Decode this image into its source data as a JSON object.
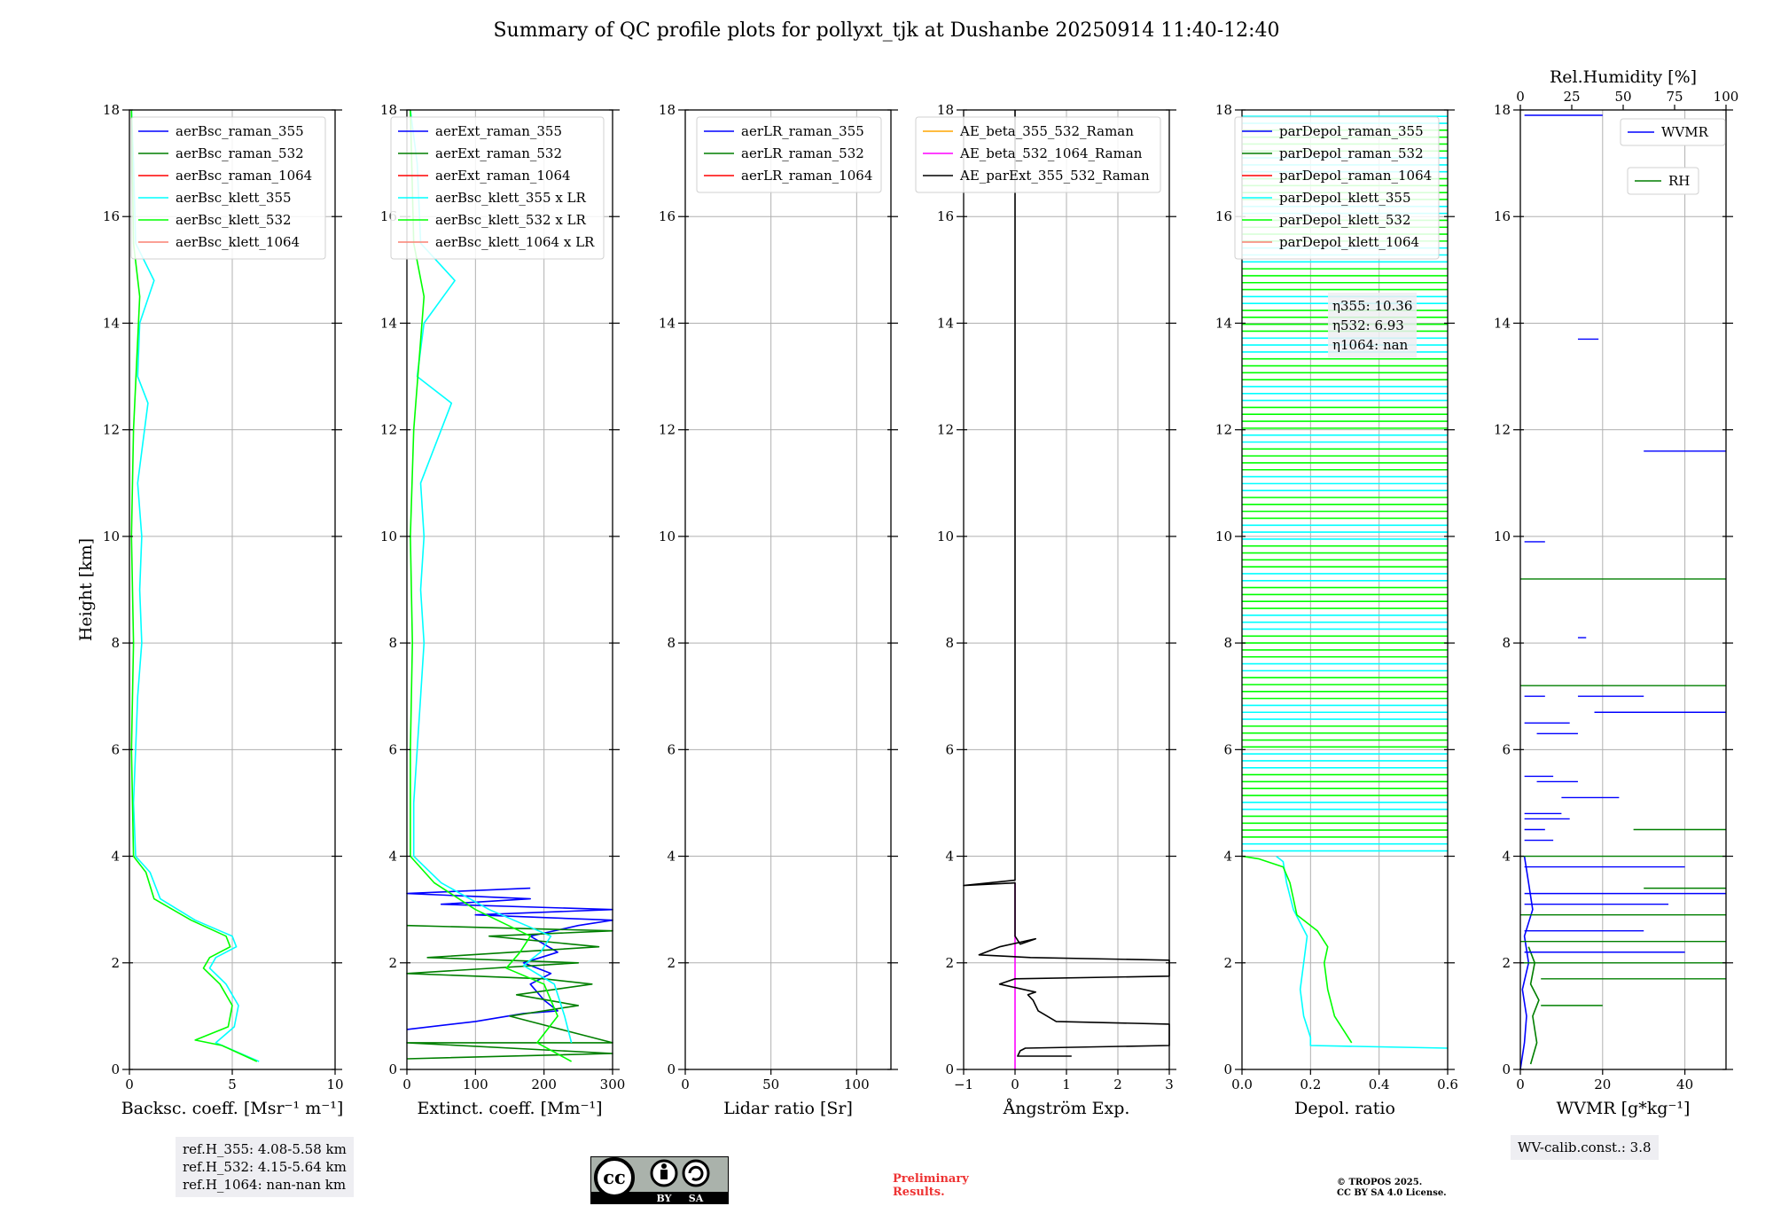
{
  "title": "Summary of QC profile plots for pollyxt_tjk at Dushanbe 20250914 11:40-12:40",
  "shared_ylabel": "Height [km]",
  "y_ticks": [
    "0",
    "2",
    "4",
    "6",
    "8",
    "10",
    "12",
    "14",
    "16",
    "18"
  ],
  "colors": {
    "blue": "#0000ff",
    "green": "#007f00",
    "red": "#ff0000",
    "cyan": "#00ffff",
    "lime": "#00ff00",
    "salmon": "#fa8072",
    "orange": "#ffa500",
    "magenta": "#ff00ff",
    "black": "#000000"
  },
  "ref_heights": [
    "ref.H_355: 4.08-5.58 km",
    "ref.H_532: 4.15-5.64 km",
    "ref.H_1064: nan-nan km"
  ],
  "wv_calib": "WV-calib.const.: 3.8",
  "preliminary": [
    "Preliminary",
    "Results."
  ],
  "copyright": [
    "© TROPOS 2025.",
    "CC BY SA 4.0 License."
  ],
  "license_badge": {
    "cc": "cc",
    "by": "BY",
    "sa": "SA"
  },
  "depol_annotation": [
    "η355: 10.36",
    "η532: 6.93",
    "η1064: nan"
  ],
  "chart_data": [
    {
      "type": "line",
      "xlabel": "Backsc. coeff. [Msr⁻¹ m⁻¹]",
      "ylabel": "Height [km]",
      "xlim": [
        0,
        10
      ],
      "ylim": [
        0,
        18
      ],
      "x_ticks": [
        0,
        5,
        10
      ],
      "grid": true,
      "legend_position": "top-right",
      "series": [
        {
          "name": "aerBsc_raman_355",
          "color": "blue",
          "points": []
        },
        {
          "name": "aerBsc_raman_532",
          "color": "green",
          "points": []
        },
        {
          "name": "aerBsc_raman_1064",
          "color": "red",
          "points": []
        },
        {
          "name": "aerBsc_klett_355",
          "color": "cyan",
          "points": [
            [
              6.3,
              0.15
            ],
            [
              4.2,
              0.5
            ],
            [
              5.1,
              0.8
            ],
            [
              5.3,
              1.2
            ],
            [
              4.7,
              1.6
            ],
            [
              3.9,
              1.9
            ],
            [
              4.2,
              2.1
            ],
            [
              5.2,
              2.3
            ],
            [
              5.0,
              2.5
            ],
            [
              3.2,
              2.8
            ],
            [
              1.5,
              3.2
            ],
            [
              1.0,
              3.7
            ],
            [
              0.3,
              4.0
            ],
            [
              0.2,
              5.0
            ],
            [
              0.3,
              6.0
            ],
            [
              0.4,
              7.0
            ],
            [
              0.6,
              8.0
            ],
            [
              0.5,
              9.0
            ],
            [
              0.6,
              10.0
            ],
            [
              0.4,
              11.0
            ],
            [
              0.9,
              12.5
            ],
            [
              0.4,
              13.0
            ],
            [
              0.5,
              14.0
            ],
            [
              1.2,
              14.8
            ],
            [
              0.3,
              15.5
            ],
            [
              0.2,
              17.0
            ],
            [
              0.1,
              18.0
            ]
          ]
        },
        {
          "name": "aerBsc_klett_532",
          "color": "lime",
          "points": [
            [
              6.2,
              0.15
            ],
            [
              4.5,
              0.45
            ],
            [
              3.2,
              0.55
            ],
            [
              4.8,
              0.8
            ],
            [
              5.0,
              1.2
            ],
            [
              4.4,
              1.6
            ],
            [
              3.6,
              1.9
            ],
            [
              3.9,
              2.1
            ],
            [
              4.9,
              2.3
            ],
            [
              4.7,
              2.5
            ],
            [
              3.0,
              2.8
            ],
            [
              1.2,
              3.2
            ],
            [
              0.8,
              3.7
            ],
            [
              0.2,
              4.0
            ],
            [
              0.1,
              6.0
            ],
            [
              0.2,
              8.0
            ],
            [
              0.1,
              10.0
            ],
            [
              0.2,
              12.0
            ],
            [
              0.5,
              14.5
            ],
            [
              0.2,
              15.5
            ],
            [
              0.1,
              18.0
            ]
          ]
        },
        {
          "name": "aerBsc_klett_1064",
          "color": "salmon",
          "points": []
        }
      ]
    },
    {
      "type": "line",
      "xlabel": "Extinct. coeff. [Mm⁻¹]",
      "ylabel": "",
      "xlim": [
        0,
        300
      ],
      "ylim": [
        0,
        18
      ],
      "x_ticks": [
        0,
        100,
        200,
        300
      ],
      "grid": true,
      "legend_position": "top-right",
      "series": [
        {
          "name": "aerExt_raman_355",
          "color": "blue",
          "points": [
            [
              0,
              0.75
            ],
            [
              100,
              0.9
            ],
            [
              170,
              1.05
            ],
            [
              220,
              1.1
            ],
            [
              200,
              1.3
            ],
            [
              180,
              1.6
            ],
            [
              210,
              1.8
            ],
            [
              170,
              2.0
            ],
            [
              220,
              2.2
            ],
            [
              180,
              2.5
            ],
            [
              250,
              2.7
            ],
            [
              300,
              2.8
            ],
            [
              100,
              2.9
            ],
            [
              300,
              3.0
            ],
            [
              50,
              3.1
            ],
            [
              180,
              3.2
            ],
            [
              0,
              3.3
            ],
            [
              180,
              3.4
            ]
          ]
        },
        {
          "name": "aerExt_raman_532",
          "color": "green",
          "points": [
            [
              0,
              0.2
            ],
            [
              300,
              0.3
            ],
            [
              0,
              0.5
            ],
            [
              300,
              0.5
            ],
            [
              150,
              1.0
            ],
            [
              250,
              1.2
            ],
            [
              160,
              1.4
            ],
            [
              270,
              1.6
            ],
            [
              200,
              1.7
            ],
            [
              0,
              1.8
            ],
            [
              250,
              2.0
            ],
            [
              30,
              2.1
            ],
            [
              280,
              2.3
            ],
            [
              120,
              2.5
            ],
            [
              300,
              2.6
            ],
            [
              0,
              2.7
            ]
          ]
        },
        {
          "name": "aerExt_raman_1064",
          "color": "red",
          "points": []
        },
        {
          "name": "aerBsc_klett_355 x LR",
          "color": "cyan",
          "points": [
            [
              240,
              0.5
            ],
            [
              230,
              1.0
            ],
            [
              215,
              1.6
            ],
            [
              170,
              1.95
            ],
            [
              195,
              2.2
            ],
            [
              210,
              2.5
            ],
            [
              120,
              3.0
            ],
            [
              50,
              3.5
            ],
            [
              10,
              4.0
            ],
            [
              10,
              5.0
            ],
            [
              15,
              6.0
            ],
            [
              20,
              7.0
            ],
            [
              25,
              8.0
            ],
            [
              20,
              9.0
            ],
            [
              25,
              10.0
            ],
            [
              20,
              11.0
            ],
            [
              65,
              12.5
            ],
            [
              15,
              13.0
            ],
            [
              25,
              14.0
            ],
            [
              70,
              14.8
            ],
            [
              20,
              15.5
            ],
            [
              15,
              17.0
            ],
            [
              5,
              18.0
            ]
          ]
        },
        {
          "name": "aerBsc_klett_532 x LR",
          "color": "lime",
          "points": [
            [
              240,
              0.15
            ],
            [
              190,
              0.5
            ],
            [
              220,
              1.0
            ],
            [
              200,
              1.6
            ],
            [
              145,
              1.9
            ],
            [
              165,
              2.2
            ],
            [
              180,
              2.5
            ],
            [
              100,
              3.0
            ],
            [
              40,
              3.5
            ],
            [
              5,
              4.0
            ],
            [
              5,
              6.0
            ],
            [
              8,
              8.0
            ],
            [
              5,
              10.0
            ],
            [
              10,
              12.0
            ],
            [
              25,
              14.5
            ],
            [
              10,
              15.5
            ],
            [
              5,
              18.0
            ]
          ]
        },
        {
          "name": "aerBsc_klett_1064 x LR",
          "color": "salmon",
          "points": []
        }
      ]
    },
    {
      "type": "line",
      "xlabel": "Lidar ratio [Sr]",
      "ylabel": "",
      "xlim": [
        0,
        120
      ],
      "ylim": [
        0,
        18
      ],
      "x_ticks": [
        0,
        50,
        100
      ],
      "grid": true,
      "legend_position": "top-right",
      "series": [
        {
          "name": "aerLR_raman_355",
          "color": "blue",
          "points": []
        },
        {
          "name": "aerLR_raman_532",
          "color": "green",
          "points": []
        },
        {
          "name": "aerLR_raman_1064",
          "color": "red",
          "points": []
        }
      ]
    },
    {
      "type": "line",
      "xlabel": "Ångström Exp.",
      "ylabel": "",
      "xlim": [
        -1,
        3
      ],
      "ylim": [
        0,
        18
      ],
      "x_ticks": [
        "−1",
        "0",
        "1",
        "2",
        "3"
      ],
      "x_tick_values": [
        -1,
        0,
        1,
        2,
        3
      ],
      "grid": true,
      "legend_position": "top-right",
      "series": [
        {
          "name": "AE_beta_355_532_Raman",
          "color": "orange",
          "points": []
        },
        {
          "name": "AE_beta_532_1064_Raman",
          "color": "magenta",
          "points": [
            [
              0,
              0
            ],
            [
              0,
              3.5
            ]
          ]
        },
        {
          "name": "AE_parExt_355_532_Raman",
          "color": "black",
          "points": [
            [
              1.1,
              0.25
            ],
            [
              0.05,
              0.25
            ],
            [
              0.1,
              0.35
            ],
            [
              0.2,
              0.4
            ],
            [
              3.0,
              0.45
            ],
            [
              3.0,
              0.85
            ],
            [
              0.8,
              0.9
            ],
            [
              0.45,
              1.1
            ],
            [
              0.35,
              1.3
            ],
            [
              0.25,
              1.4
            ],
            [
              0.4,
              1.45
            ],
            [
              -0.3,
              1.6
            ],
            [
              0.0,
              1.7
            ],
            [
              3.0,
              1.75
            ],
            [
              3.0,
              2.05
            ],
            [
              0.3,
              2.1
            ],
            [
              -0.7,
              2.15
            ],
            [
              -0.3,
              2.3
            ],
            [
              0.4,
              2.45
            ],
            [
              0.1,
              2.35
            ],
            [
              0,
              2.5
            ],
            [
              0,
              3.5
            ],
            [
              -1.0,
              3.45
            ],
            [
              0,
              3.55
            ],
            [
              0,
              18
            ]
          ]
        }
      ]
    },
    {
      "type": "line",
      "xlabel": "Depol. ratio",
      "ylabel": "",
      "xlim": [
        0,
        0.6
      ],
      "ylim": [
        0,
        18
      ],
      "x_ticks": [
        "0.0",
        "0.2",
        "0.4",
        "0.6"
      ],
      "x_tick_values": [
        0,
        0.2,
        0.4,
        0.6
      ],
      "grid": true,
      "legend_position": "top-right",
      "series": [
        {
          "name": "parDepol_raman_355",
          "color": "blue",
          "points": []
        },
        {
          "name": "parDepol_raman_532",
          "color": "green",
          "points": []
        },
        {
          "name": "parDepol_raman_1064",
          "color": "red",
          "points": []
        },
        {
          "name": "parDepol_klett_355",
          "color": "cyan",
          "points": [
            [
              0.6,
              0.4
            ],
            [
              0.2,
              0.45
            ],
            [
              0.2,
              0.6
            ],
            [
              0.18,
              1.0
            ],
            [
              0.17,
              1.5
            ],
            [
              0.18,
              2.0
            ],
            [
              0.19,
              2.5
            ],
            [
              0.15,
              3.0
            ],
            [
              0.13,
              3.5
            ],
            [
              0.12,
              3.9
            ],
            [
              0.1,
              4.0
            ]
          ]
        },
        {
          "name": "parDepol_klett_532",
          "color": "lime",
          "points": [
            [
              0.32,
              0.5
            ],
            [
              0.27,
              1.0
            ],
            [
              0.25,
              1.5
            ],
            [
              0.24,
              2.0
            ],
            [
              0.25,
              2.3
            ],
            [
              0.22,
              2.6
            ],
            [
              0.16,
              2.9
            ],
            [
              0.14,
              3.5
            ],
            [
              0.12,
              3.8
            ],
            [
              0.05,
              3.95
            ],
            [
              0,
              4.0
            ]
          ]
        },
        {
          "name": "parDepol_klett_1064",
          "color": "salmon",
          "points": []
        }
      ]
    },
    {
      "type": "line",
      "xlabel": "WVMR [g*kg⁻¹]",
      "ylabel": "",
      "xlim": [
        0,
        50
      ],
      "ylim": [
        0,
        18
      ],
      "x_ticks": [
        0,
        20,
        40
      ],
      "grid": true,
      "legend_position": "top-right",
      "top_axis": {
        "label": "Rel.Humidity [%]",
        "ticks": [
          0,
          25,
          50,
          75,
          100
        ],
        "lim": [
          0,
          100
        ]
      },
      "series": [
        {
          "name": "WVMR",
          "color": "blue",
          "points": [
            [
              0,
              0
            ],
            [
              1,
              0.5
            ],
            [
              1.5,
              1.0
            ],
            [
              0.5,
              1.5
            ],
            [
              2,
              2.0
            ],
            [
              1,
              2.5
            ],
            [
              3,
              3.0
            ],
            [
              2,
              3.5
            ],
            [
              1,
              4.0
            ]
          ]
        },
        {
          "name": "RH",
          "color": "green",
          "points": [
            [
              5,
              0.1
            ],
            [
              8,
              0.5
            ],
            [
              6,
              1.0
            ],
            [
              9,
              1.3
            ],
            [
              5,
              1.6
            ],
            [
              7,
              2.0
            ],
            [
              4,
              2.3
            ]
          ]
        }
      ]
    }
  ]
}
